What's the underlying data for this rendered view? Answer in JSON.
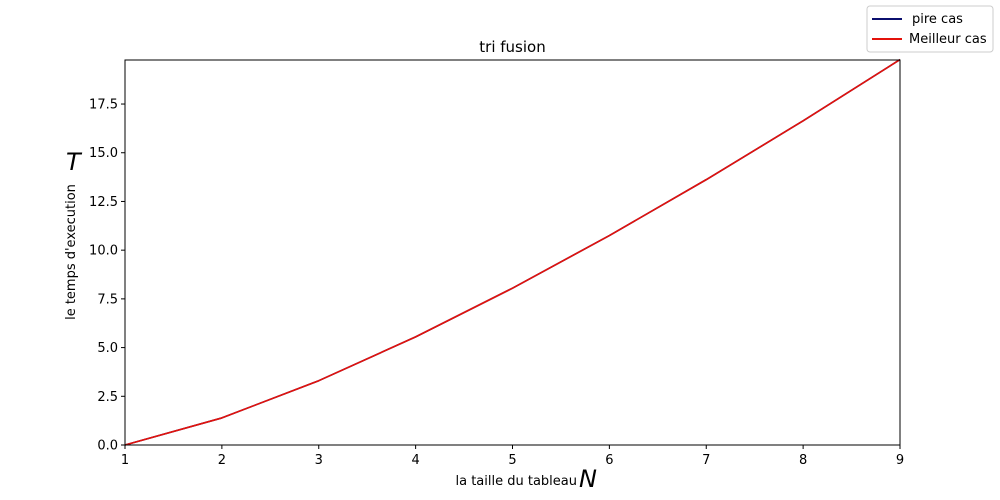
{
  "chart_data": {
    "type": "line",
    "title": "tri fusion",
    "xlabel": "la taille du tableau",
    "xlabel_symbol": "N",
    "ylabel": "le temps d'execution",
    "ylabel_symbol": "T",
    "x": [
      1,
      2,
      3,
      4,
      5,
      6,
      7,
      8,
      9
    ],
    "xlim": [
      1,
      9
    ],
    "ylim": [
      0,
      19.76
    ],
    "xticks": [
      1,
      2,
      3,
      4,
      5,
      6,
      7,
      8,
      9
    ],
    "yticks": [
      0.0,
      2.5,
      5.0,
      7.5,
      10.0,
      12.5,
      15.0,
      17.5
    ],
    "ytick_labels": [
      "0.0",
      "2.5",
      "5.0",
      "7.5",
      "10.0",
      "12.5",
      "15.0",
      "17.5"
    ],
    "grid": false,
    "legend_position": "top-right",
    "series": [
      {
        "name": "pire cas",
        "color": "#0b0f6e",
        "values": [
          0,
          1.39,
          3.3,
          5.55,
          8.05,
          10.75,
          13.62,
          16.64,
          19.78
        ]
      },
      {
        "name": "Meilleur cas",
        "color": "#e3120b",
        "values": [
          0,
          1.39,
          3.3,
          5.55,
          8.05,
          10.75,
          13.62,
          16.64,
          19.78
        ]
      }
    ]
  }
}
